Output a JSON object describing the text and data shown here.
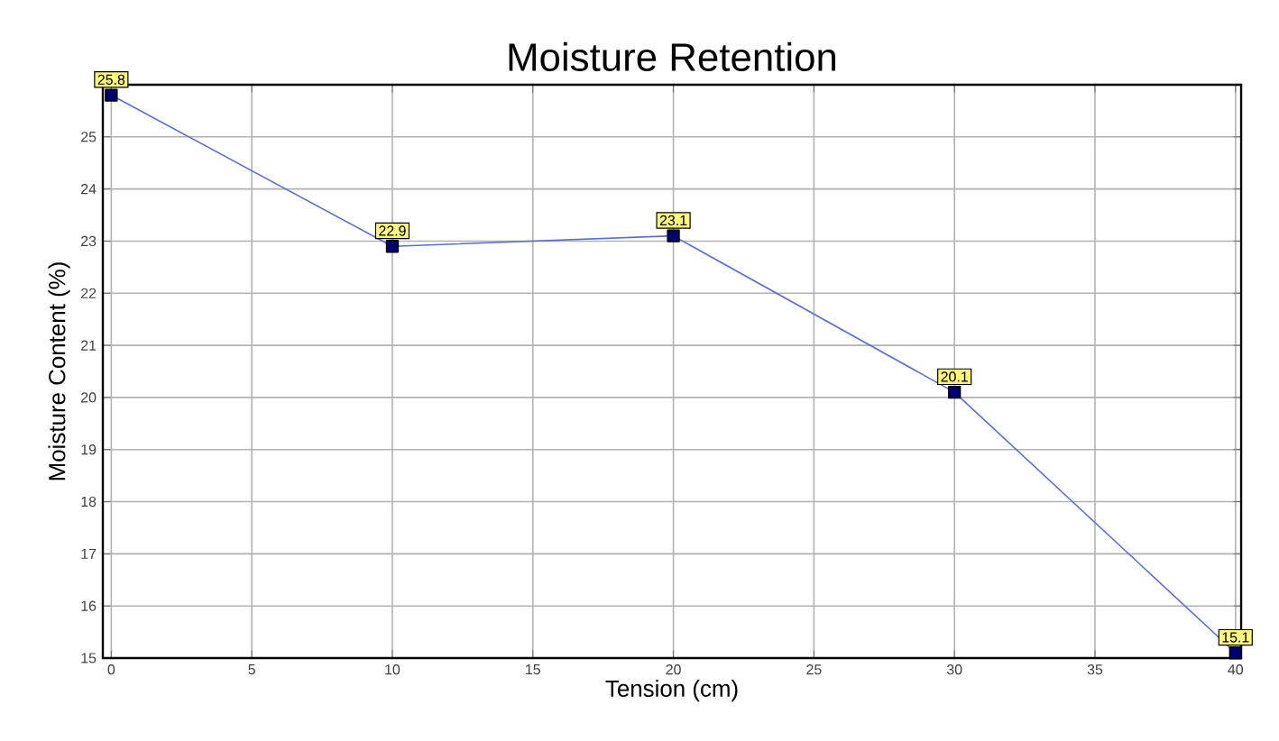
{
  "chart_data": {
    "type": "line",
    "title": "Moisture Retention",
    "xlabel": "Tension (cm)",
    "ylabel": "Moisture Content (%)",
    "x": [
      0,
      10,
      20,
      30,
      40
    ],
    "series": [
      {
        "color": "#5b6fd0",
        "values": [
          25.8,
          22.9,
          23.1,
          20.1,
          15.1
        ],
        "value_labels": [
          "25.8",
          "22.9",
          "23.1",
          "20.1",
          "15.1"
        ]
      }
    ],
    "xlim": [
      -0.3,
      40.2
    ],
    "ylim": [
      15,
      26
    ],
    "xticks": [
      0,
      5,
      10,
      15,
      20,
      25,
      30,
      35,
      40
    ],
    "yticks": [
      15,
      16,
      17,
      18,
      19,
      20,
      21,
      22,
      23,
      24,
      25
    ],
    "grid": true,
    "marker": "square",
    "line_style": "solid"
  }
}
